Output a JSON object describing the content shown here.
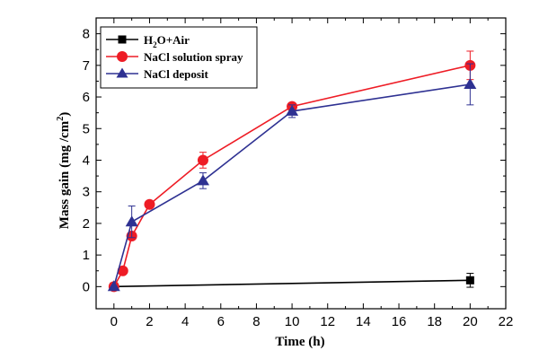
{
  "chart_data": {
    "type": "line",
    "xlabel": "Time (h)",
    "ylabel_main": "Mass gain (mg /cm",
    "ylabel_sup": "2",
    "ylabel_close": ")",
    "xlim": [
      -1,
      22
    ],
    "ylim": [
      -0.7,
      8.5
    ],
    "x_ticks": [
      0,
      2,
      4,
      6,
      8,
      10,
      12,
      14,
      16,
      18,
      20,
      22
    ],
    "y_ticks": [
      0,
      1,
      2,
      3,
      4,
      5,
      6,
      7,
      8
    ],
    "grid": false,
    "legend_position": "top-left",
    "series": [
      {
        "name_main": "H",
        "name_sub": "2",
        "name_rest": "O+Air",
        "color": "#000000",
        "marker": "square",
        "x": [
          0,
          20
        ],
        "y": [
          0.0,
          0.2
        ],
        "err": [
          0,
          0.22
        ]
      },
      {
        "name_main": "NaCl solution spray",
        "name_sub": "",
        "name_rest": "",
        "color": "#ee1c25",
        "marker": "circle",
        "x": [
          0,
          0.5,
          1,
          2,
          5,
          10,
          20
        ],
        "y": [
          0.0,
          0.5,
          1.6,
          2.6,
          4.0,
          5.7,
          7.0
        ],
        "err": [
          0,
          0,
          0,
          0,
          0.25,
          0.1,
          0.45
        ]
      },
      {
        "name_main": "NaCl deposit",
        "name_sub": "",
        "name_rest": "",
        "color": "#2e3192",
        "marker": "triangle",
        "x": [
          0,
          1,
          5,
          10,
          20
        ],
        "y": [
          0.0,
          2.05,
          3.35,
          5.55,
          6.4
        ],
        "err": [
          0,
          0.5,
          0.25,
          0.2,
          0.65
        ]
      }
    ]
  }
}
